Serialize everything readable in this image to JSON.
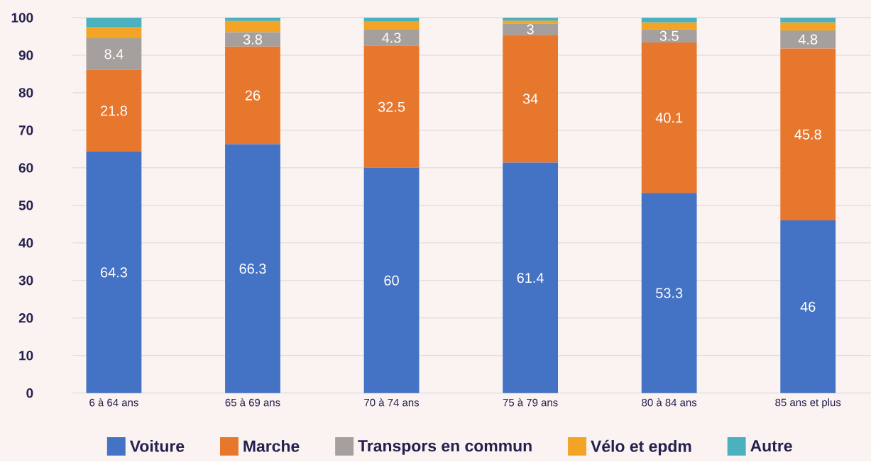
{
  "chart_data": {
    "type": "bar",
    "stacked": true,
    "categories": [
      "6 à 64 ans",
      "65 à 69 ans",
      "70 à 74 ans",
      "75 à 79 ans",
      "80 à 84 ans",
      "85 ans et plus"
    ],
    "series": [
      {
        "name": "Voiture",
        "color": "#4472c4",
        "values": [
          64.3,
          66.3,
          60,
          61.4,
          53.3,
          46
        ],
        "value_labels": [
          "64.3",
          "66.3",
          "60",
          "61.4",
          "53.3",
          "46"
        ]
      },
      {
        "name": "Marche",
        "color": "#e8772e",
        "values": [
          21.8,
          26,
          32.5,
          34,
          40.1,
          45.8
        ],
        "value_labels": [
          "21.8",
          "26",
          "32.5",
          "34",
          "40.1",
          "45.8"
        ]
      },
      {
        "name": "Transpors en commun",
        "color": "#a5a09d",
        "values": [
          8.4,
          3.8,
          4.3,
          3,
          3.5,
          4.8
        ],
        "value_labels": [
          "8.4",
          "3.8",
          "4.3",
          "3",
          "3.5",
          "4.8"
        ]
      },
      {
        "name": "Vélo et epdm",
        "color": "#f4a424",
        "values": [
          2.9,
          3.0,
          2.1,
          0.8,
          1.8,
          2.1
        ]
      },
      {
        "name": "Autre",
        "color": "#4bb1bf",
        "values": [
          2.6,
          0.9,
          1.1,
          0.8,
          1.3,
          1.3
        ]
      }
    ],
    "ylim": [
      0,
      100
    ],
    "yticks": [
      0,
      10,
      20,
      30,
      40,
      50,
      60,
      70,
      80,
      90,
      100
    ],
    "grid": "y",
    "legend": "bottom"
  }
}
